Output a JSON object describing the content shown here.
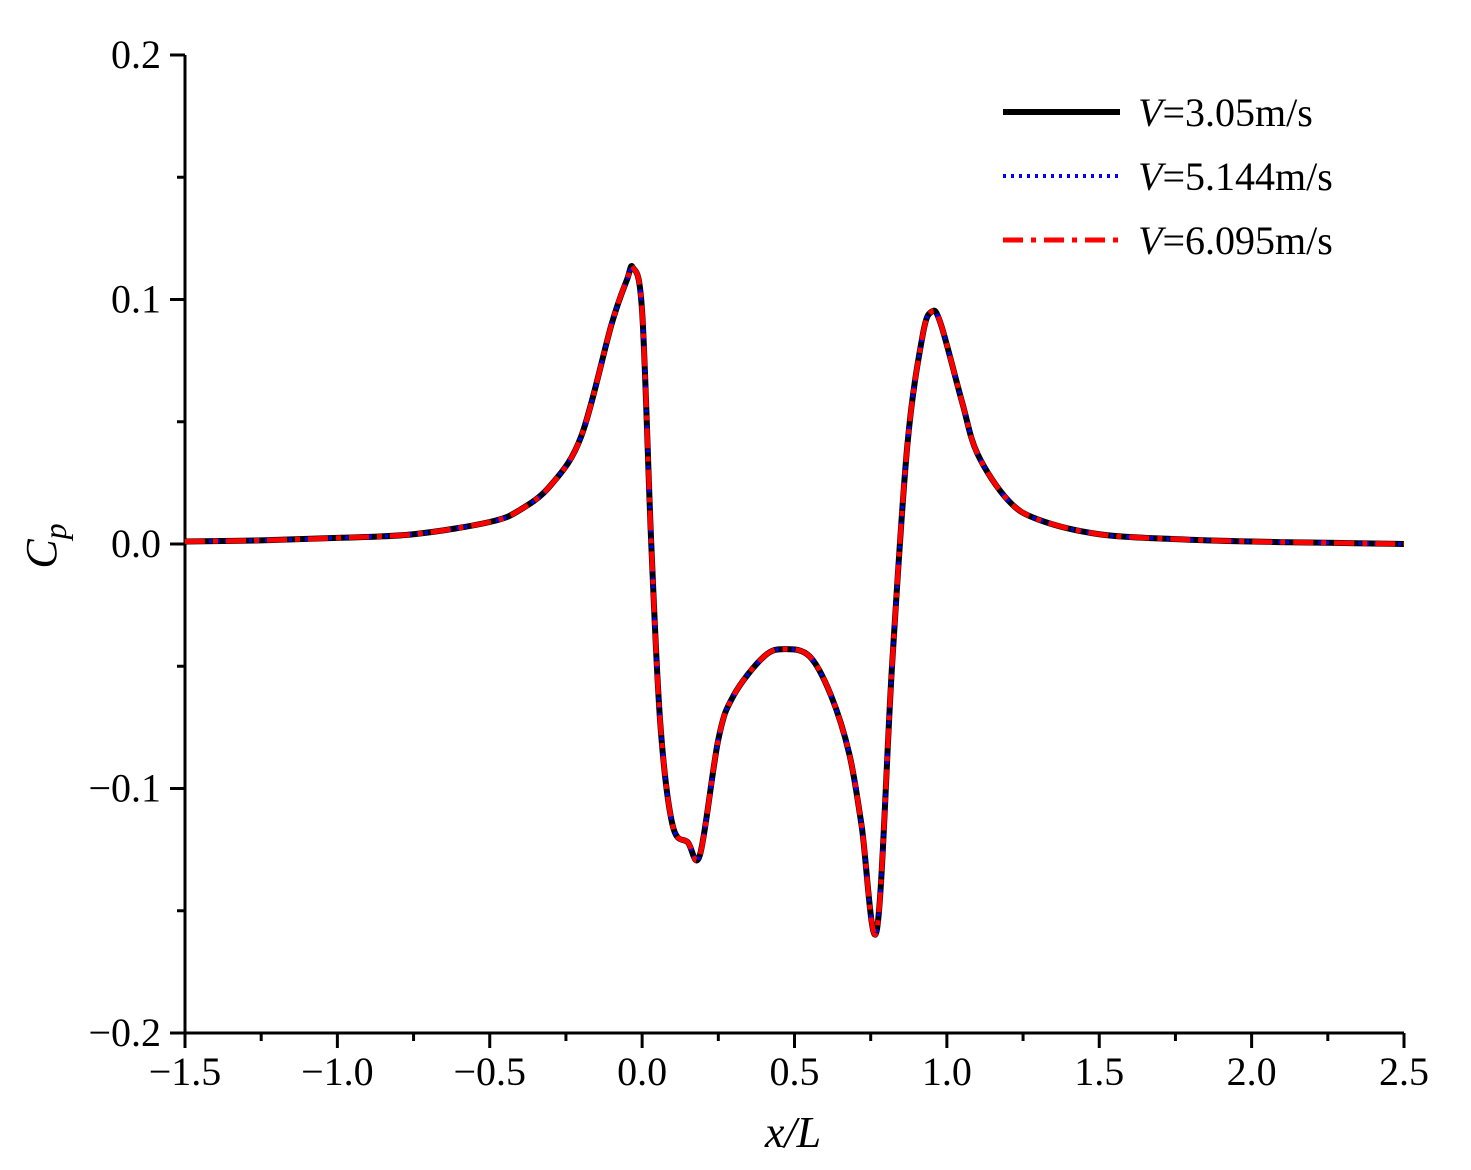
{
  "chart_data": {
    "type": "line",
    "xlabel": "x/L",
    "ylabel": "C_p",
    "xlim": [
      -1.5,
      2.5
    ],
    "ylim": [
      -0.2,
      0.2
    ],
    "x_ticks": [
      -1.5,
      -1.0,
      -0.5,
      0.0,
      0.5,
      1.0,
      1.5,
      2.0,
      2.5
    ],
    "x_tick_labels": [
      "−1.5",
      "−1.0",
      "−0.5",
      "0.0",
      "0.5",
      "1.0",
      "1.5",
      "2.0",
      "2.5"
    ],
    "y_ticks": [
      -0.2,
      -0.1,
      0.0,
      0.1,
      0.2
    ],
    "y_tick_labels": [
      "−0.2",
      "−0.1",
      "0.0",
      "0.1",
      "0.2"
    ],
    "grid": false,
    "legend_position": "top-right",
    "x": [
      -1.5,
      -1.25,
      -1.0,
      -0.75,
      -0.5,
      -0.4,
      -0.3,
      -0.2,
      -0.1,
      -0.05,
      -0.03,
      0.0,
      0.03,
      0.06,
      0.1,
      0.15,
      0.19,
      0.25,
      0.3,
      0.4,
      0.47,
      0.55,
      0.62,
      0.68,
      0.72,
      0.77,
      0.82,
      0.87,
      0.92,
      0.95,
      0.98,
      1.05,
      1.1,
      1.2,
      1.3,
      1.5,
      1.75,
      2.0,
      2.25,
      2.5
    ],
    "series": [
      {
        "name": "V=3.05m/s",
        "legend_prefix": "V",
        "legend_suffix": "=3.05m/s",
        "color": "#000000",
        "style": "solid",
        "values": [
          0.001,
          0.0015,
          0.0025,
          0.004,
          0.009,
          0.014,
          0.024,
          0.044,
          0.09,
          0.108,
          0.113,
          0.095,
          0.0,
          -0.074,
          -0.115,
          -0.122,
          -0.127,
          -0.08,
          -0.062,
          -0.046,
          -0.043,
          -0.046,
          -0.062,
          -0.086,
          -0.115,
          -0.158,
          -0.05,
          0.04,
          0.085,
          0.095,
          0.09,
          0.058,
          0.037,
          0.018,
          0.01,
          0.004,
          0.002,
          0.001,
          0.0005,
          0.0
        ]
      },
      {
        "name": "V=5.144m/s",
        "legend_prefix": "V",
        "legend_suffix": "=5.144m/s",
        "color": "#0000ff",
        "style": "dotted",
        "values": [
          0.001,
          0.0015,
          0.0025,
          0.004,
          0.009,
          0.014,
          0.024,
          0.044,
          0.09,
          0.108,
          0.113,
          0.095,
          0.0,
          -0.074,
          -0.115,
          -0.122,
          -0.127,
          -0.08,
          -0.062,
          -0.046,
          -0.043,
          -0.046,
          -0.062,
          -0.086,
          -0.115,
          -0.158,
          -0.05,
          0.04,
          0.085,
          0.095,
          0.09,
          0.058,
          0.037,
          0.018,
          0.01,
          0.004,
          0.002,
          0.001,
          0.0005,
          0.0
        ]
      },
      {
        "name": "V=6.095m/s",
        "legend_prefix": "V",
        "legend_suffix": "=6.095m/s",
        "color": "#ff0000",
        "style": "dash-dot",
        "values": [
          0.001,
          0.0015,
          0.0025,
          0.004,
          0.009,
          0.014,
          0.024,
          0.044,
          0.09,
          0.108,
          0.113,
          0.095,
          0.0,
          -0.074,
          -0.115,
          -0.122,
          -0.127,
          -0.08,
          -0.062,
          -0.046,
          -0.043,
          -0.046,
          -0.062,
          -0.086,
          -0.115,
          -0.158,
          -0.05,
          0.04,
          0.085,
          0.095,
          0.09,
          0.058,
          0.037,
          0.018,
          0.01,
          0.004,
          0.002,
          0.001,
          0.0005,
          0.0
        ]
      }
    ]
  }
}
